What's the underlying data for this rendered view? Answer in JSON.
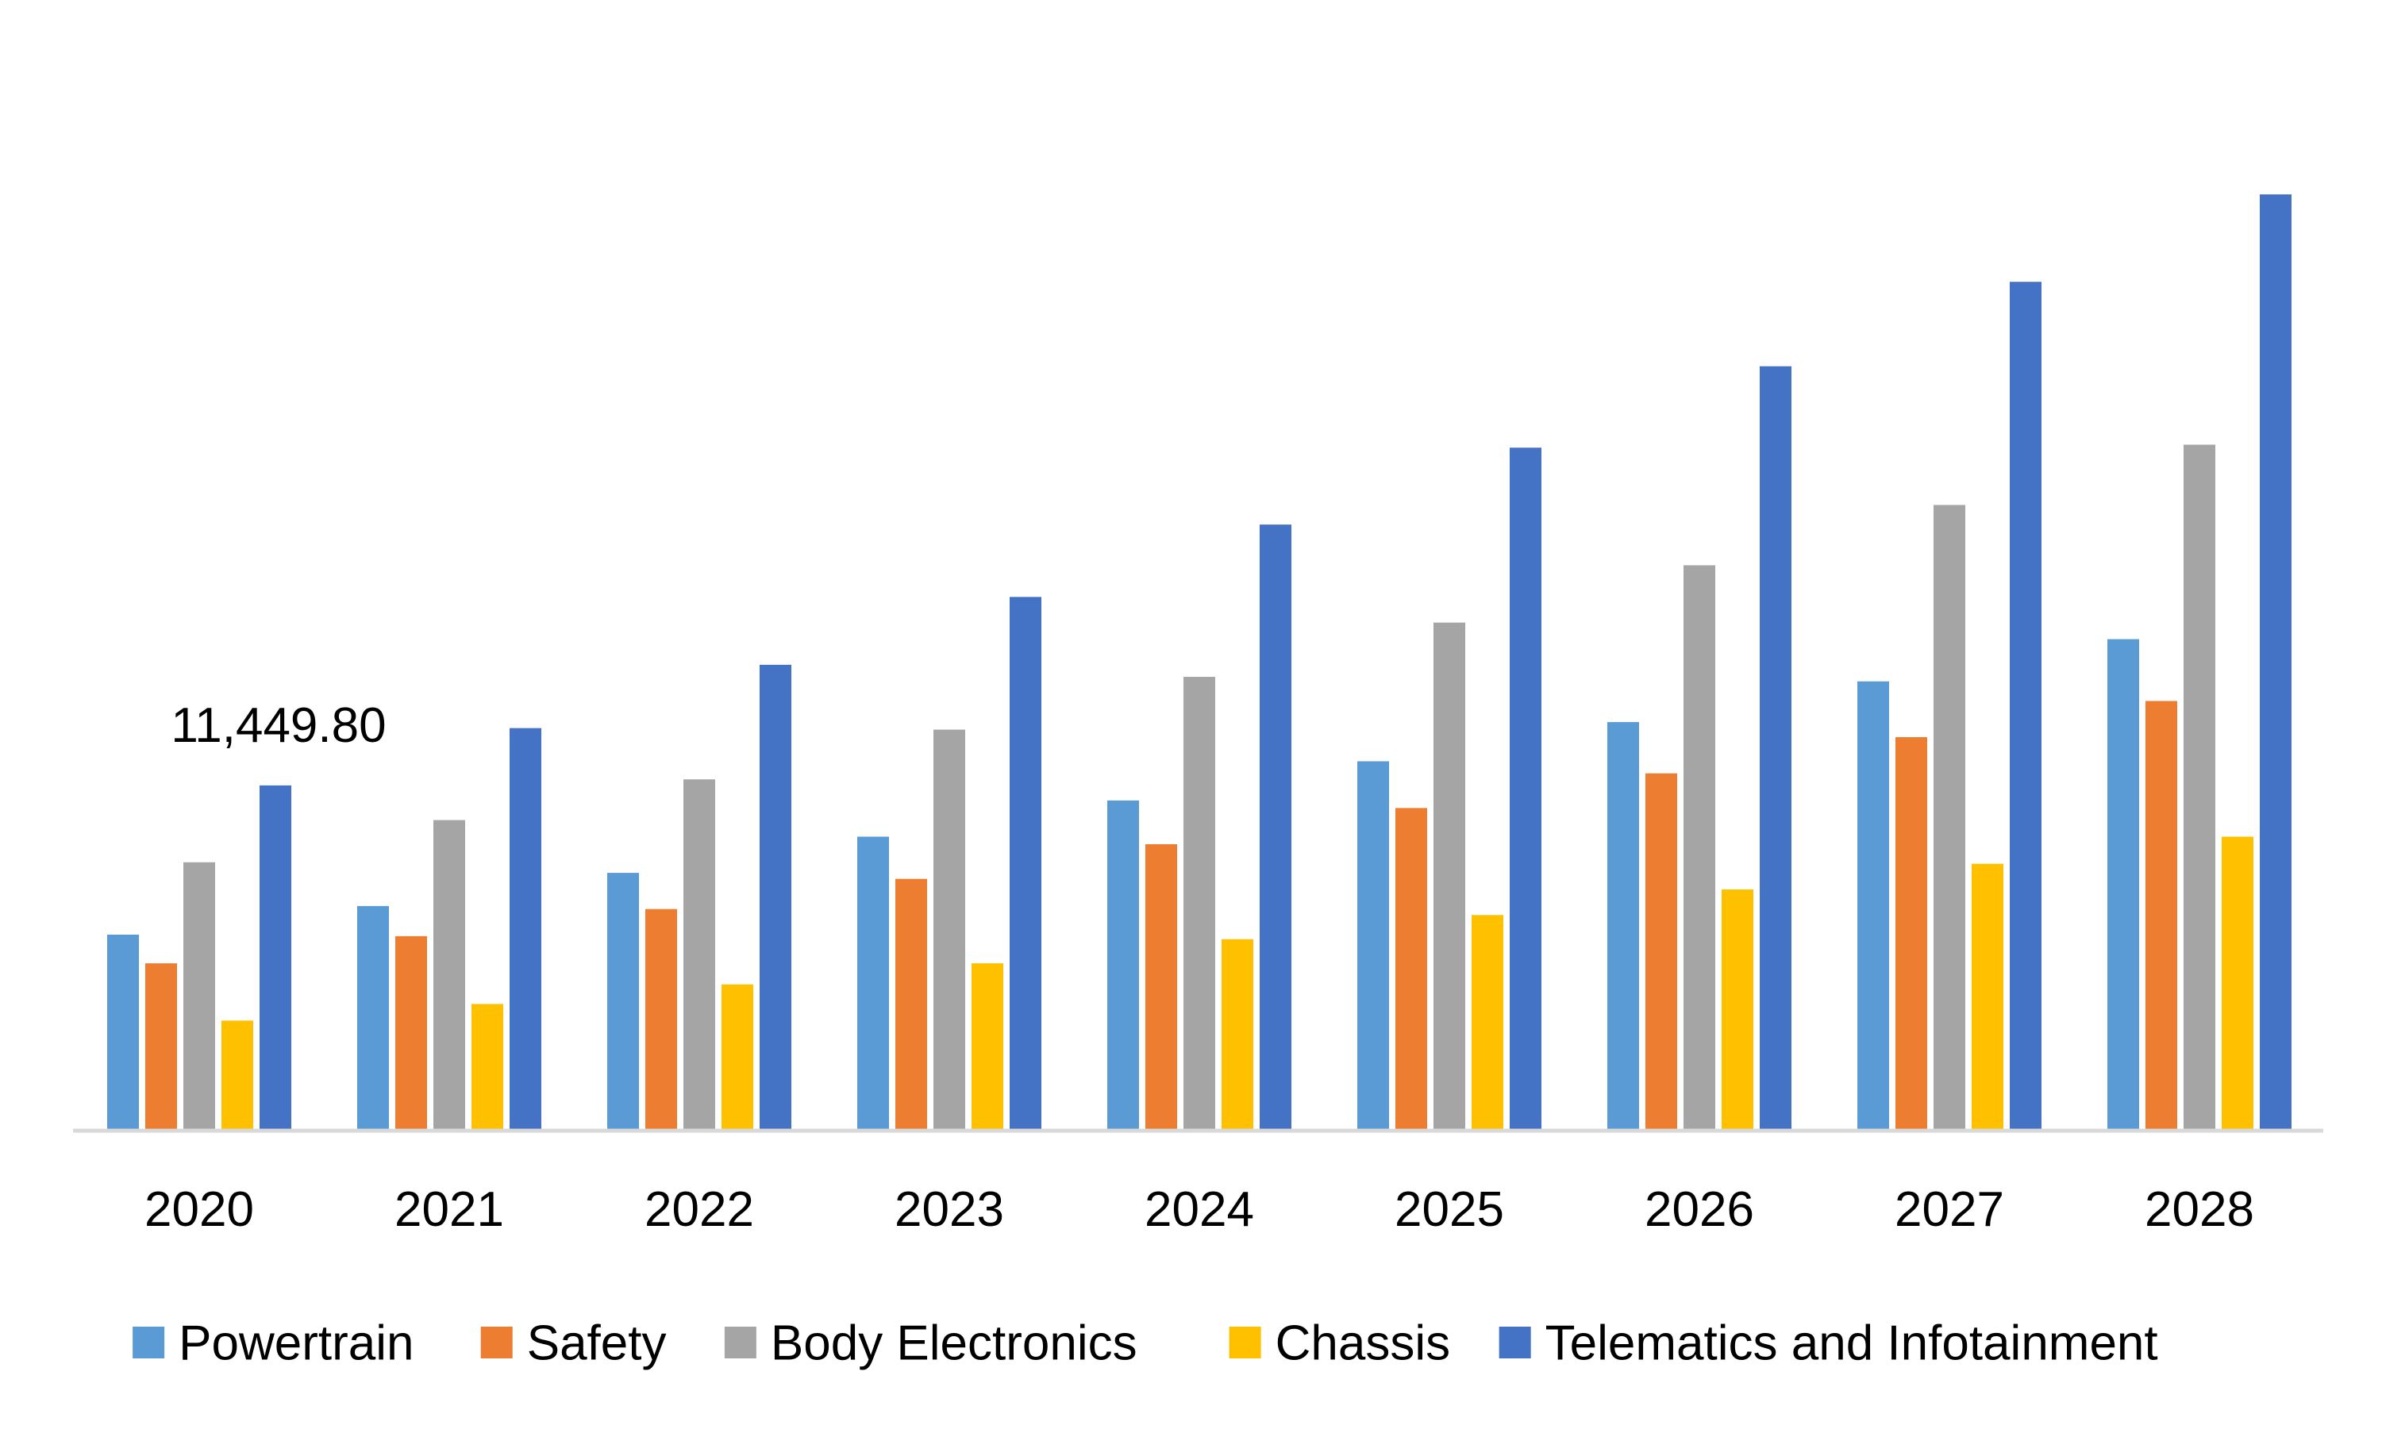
{
  "chart_data": {
    "type": "bar",
    "title": "",
    "xlabel": "",
    "ylabel": "",
    "categories": [
      "2020",
      "2021",
      "2022",
      "2023",
      "2024",
      "2025",
      "2026",
      "2027",
      "2028"
    ],
    "series": [
      {
        "name": "Powertrain",
        "color": "#5B9BD5",
        "values": [
          6500,
          7450,
          8550,
          9750,
          10950,
          12250,
          13550,
          14900,
          16300
        ]
      },
      {
        "name": "Safety",
        "color": "#ED7D31",
        "values": [
          5550,
          6450,
          7350,
          8350,
          9500,
          10700,
          11850,
          13050,
          14250
        ]
      },
      {
        "name": "Body Electronics",
        "color": "#A5A5A5",
        "values": [
          8900,
          10300,
          11650,
          13300,
          15050,
          16850,
          18750,
          20750,
          22750
        ]
      },
      {
        "name": "Chassis",
        "color": "#FFC000",
        "values": [
          3650,
          4200,
          4850,
          5550,
          6350,
          7150,
          8000,
          8850,
          9750
        ]
      },
      {
        "name": "Telematics and Infotainment",
        "color": "#4472C4",
        "values": [
          11449.8,
          13350,
          15450,
          17700,
          20100,
          22650,
          25350,
          28150,
          31050
        ]
      }
    ],
    "data_labels": [
      {
        "series": "Telematics and Infotainment",
        "category": "2020",
        "text": "11,449.80"
      }
    ],
    "ylim": [
      0,
      31050
    ],
    "grid": false,
    "legend_position": "bottom"
  }
}
